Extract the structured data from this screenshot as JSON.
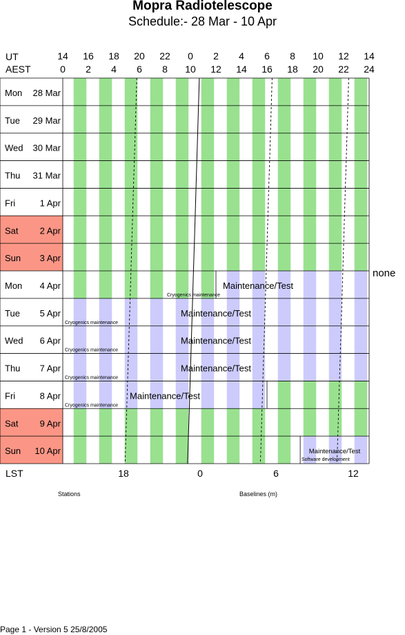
{
  "title": "Mopra Radiotelescope",
  "subtitle": "Schedule:- 28 Mar - 10 Apr",
  "ut_label": "UT",
  "aest_label": "AEST",
  "ut_ticks": [
    "14",
    "16",
    "18",
    "20",
    "22",
    "0",
    "2",
    "4",
    "6",
    "8",
    "10",
    "12",
    "14"
  ],
  "aest_ticks": [
    "0",
    "2",
    "4",
    "6",
    "8",
    "10",
    "12",
    "14",
    "16",
    "18",
    "20",
    "22",
    "24"
  ],
  "days": [
    {
      "name": "Mon",
      "date": "28 Mar",
      "weekend": false
    },
    {
      "name": "Tue",
      "date": "29 Mar",
      "weekend": false
    },
    {
      "name": "Wed",
      "date": "30 Mar",
      "weekend": false
    },
    {
      "name": "Thu",
      "date": "31 Mar",
      "weekend": false
    },
    {
      "name": "Fri",
      "date": "1 Apr",
      "weekend": false
    },
    {
      "name": "Sat",
      "date": "2 Apr",
      "weekend": true
    },
    {
      "name": "Sun",
      "date": "3 Apr",
      "weekend": true
    },
    {
      "name": "Mon",
      "date": "4 Apr",
      "weekend": false
    },
    {
      "name": "Tue",
      "date": "5 Apr",
      "weekend": false
    },
    {
      "name": "Wed",
      "date": "6 Apr",
      "weekend": false
    },
    {
      "name": "Thu",
      "date": "7 Apr",
      "weekend": false
    },
    {
      "name": "Fri",
      "date": "8 Apr",
      "weekend": false
    },
    {
      "name": "Sat",
      "date": "9 Apr",
      "weekend": true
    },
    {
      "name": "Sun",
      "date": "10 Apr",
      "weekend": true
    }
  ],
  "maintenance_label": "Maintenance/Test",
  "cryo_label": "Cryogenics maintenance",
  "software_label": "Software development",
  "side_note": "none",
  "lst_label": "LST",
  "lst_ticks": [
    "18",
    "0",
    "6",
    "12"
  ],
  "stations_label": "Stations",
  "baselines_label": "Baselines (m)",
  "footer": "Page 1 - Version 5  25/8/2005",
  "colors": {
    "stripe_green": "#99e18f",
    "stripe_purple": "#cccbfb",
    "weekend": "#fb9686",
    "grid": "#000000"
  }
}
